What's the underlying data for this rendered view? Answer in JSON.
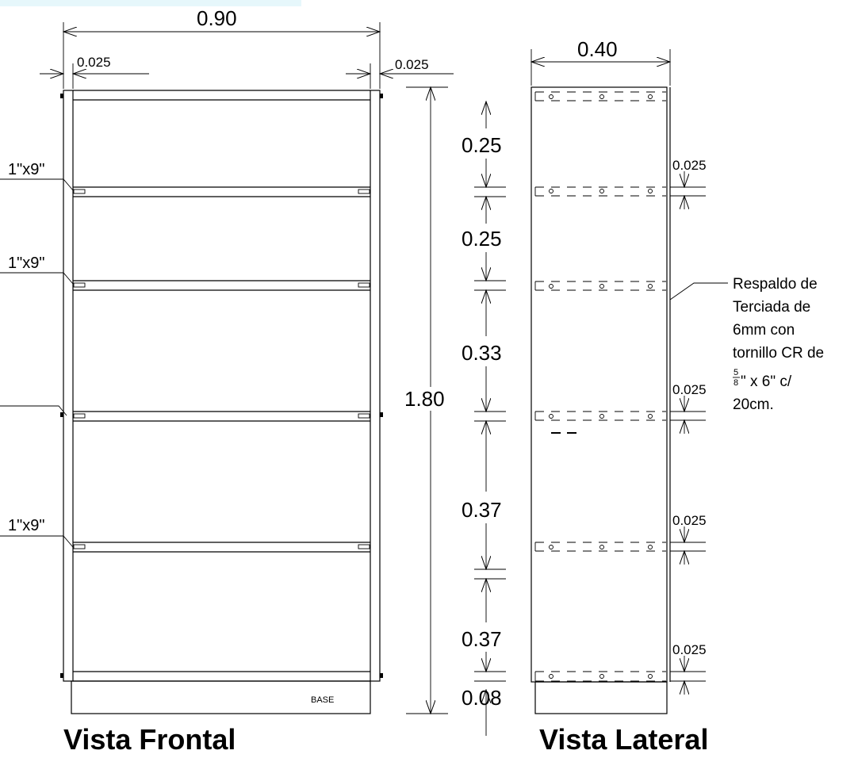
{
  "frontal": {
    "width_dim": "0.90",
    "side_left_dim": "0.025",
    "side_right_dim": "0.025",
    "height_dim": "1.80",
    "board_labels": [
      "1\"x9\"",
      "1\"x9\"",
      "1\"x9\""
    ],
    "base_label": "BASE",
    "title": "Vista Frontal"
  },
  "spacing_dims": [
    "0.25",
    "0.25",
    "0.33",
    "0.37",
    "0.37",
    "0.08"
  ],
  "lateral": {
    "depth_dim": "0.40",
    "shelf_thickness_dims": [
      "0.025",
      "0.025",
      "0.025",
      "0.025"
    ],
    "note_lines": [
      "Respaldo de",
      "Terciada de",
      "6mm con",
      "tornillo CR de"
    ],
    "note_fraction_num": "5",
    "note_fraction_den": "8",
    "note_fraction_tail": "\" x 6\" c/",
    "note_last_line": "20cm.",
    "title": "Vista Lateral"
  },
  "colors": {
    "highlight_bar": "#e6f7fb",
    "line": "#000000"
  }
}
